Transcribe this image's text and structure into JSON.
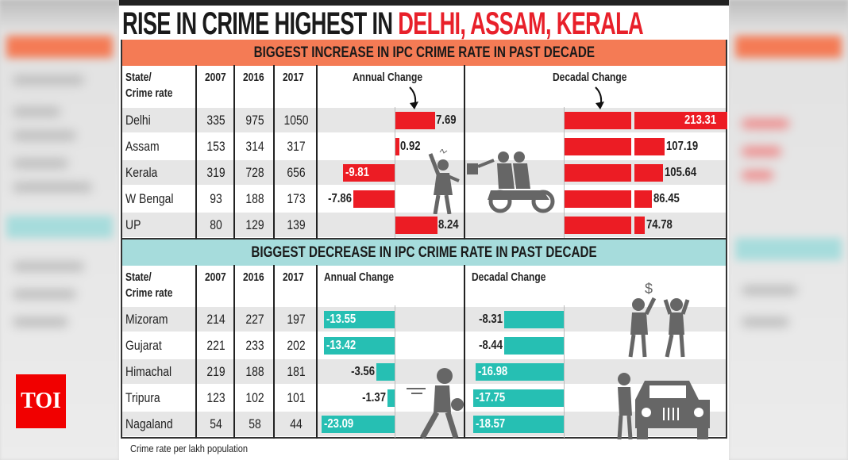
{
  "brand": {
    "logo_text": "TOI",
    "logo_color": "#f10000"
  },
  "title": {
    "part1": "RISE IN CRIME HIGHEST IN ",
    "part2": "DELHI, ASSAM, KERALA",
    "accent": "#e8202a"
  },
  "footnote": "Crime rate per lakh population",
  "colors": {
    "increase_band": "#f47b55",
    "decrease_band": "#a6dcdc",
    "increase_bar": "#ec1c24",
    "decrease_bar": "#26bfb3"
  },
  "columns": {
    "state": [
      "State/",
      "Crime rate"
    ],
    "y2007": "2007",
    "y2016": "2016",
    "y2017": "2017",
    "annual": "Annual Change",
    "decadal": "Decadal Change"
  },
  "chart_data": [
    {
      "type": "table",
      "title": "BIGGEST INCREASE IN IPC CRIME RATE IN PAST DECADE",
      "rows": [
        {
          "state": "Delhi",
          "y2007": "335",
          "y2016": "975",
          "y2017": "1050",
          "annual": 7.69,
          "decadal": 213.31
        },
        {
          "state": "Assam",
          "y2007": "153",
          "y2016": "314",
          "y2017": "317",
          "annual": 0.92,
          "decadal": 107.19
        },
        {
          "state": "Kerala",
          "y2007": "319",
          "y2016": "728",
          "y2017": "656",
          "annual": -9.81,
          "decadal": 105.64
        },
        {
          "state": "W Bengal",
          "y2007": "93",
          "y2016": "188",
          "y2017": "173",
          "annual": -7.86,
          "decadal": 86.45
        },
        {
          "state": "UP",
          "y2007": "80",
          "y2016": "129",
          "y2017": "139",
          "annual": 8.24,
          "decadal": 74.78
        }
      ]
    },
    {
      "type": "table",
      "title": "BIGGEST DECREASE IN IPC CRIME RATE IN PAST DECADE",
      "rows": [
        {
          "state": "Mizoram",
          "y2007": "214",
          "y2016": "227",
          "y2017": "197",
          "annual": -13.55,
          "decadal": -8.31
        },
        {
          "state": "Gujarat",
          "y2007": "221",
          "y2016": "233",
          "y2017": "202",
          "annual": -13.42,
          "decadal": -8.44
        },
        {
          "state": "Himachal",
          "y2007": "219",
          "y2016": "188",
          "y2017": "181",
          "annual": -3.56,
          "decadal": -16.98
        },
        {
          "state": "Tripura",
          "y2007": "123",
          "y2016": "102",
          "y2017": "101",
          "annual": -1.37,
          "decadal": -17.75
        },
        {
          "state": "Nagaland",
          "y2007": "54",
          "y2016": "58",
          "y2017": "44",
          "annual": -23.09,
          "decadal": -18.57
        }
      ]
    }
  ]
}
